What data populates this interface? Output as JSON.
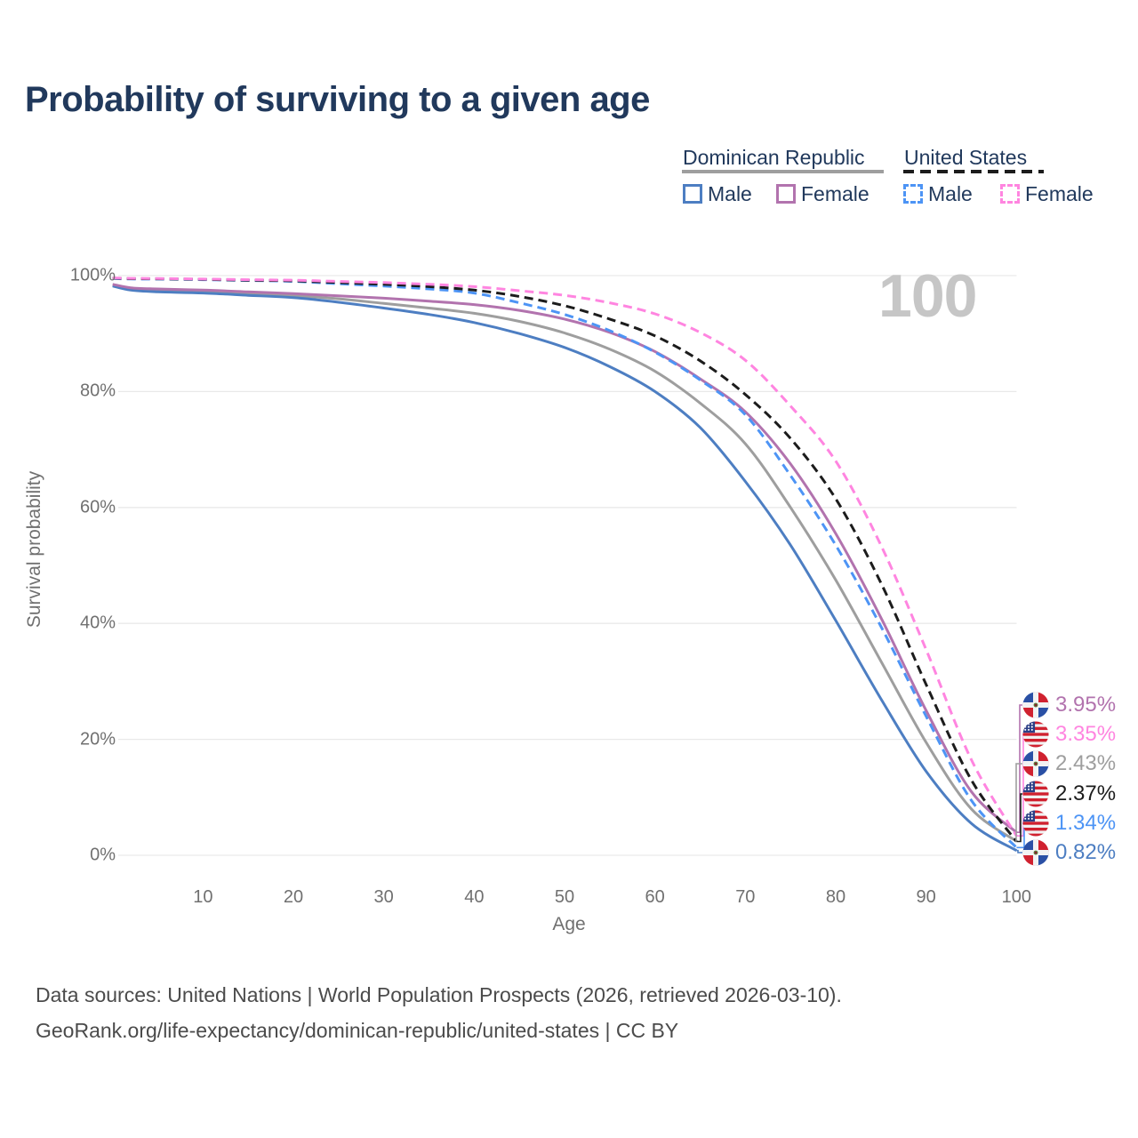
{
  "title": "Probability of surviving to a given age",
  "watermark_age": "100",
  "legend": {
    "groups": [
      {
        "name": "Dominican Republic",
        "line_style": "solid",
        "header_line_color": "#9e9e9e",
        "items": [
          {
            "label": "Male",
            "color": "#4d7ec2"
          },
          {
            "label": "Female",
            "color": "#b273ae"
          }
        ]
      },
      {
        "name": "United States",
        "line_style": "dashed",
        "header_line_color": "#1c1c1c",
        "items": [
          {
            "label": "Male",
            "color": "#4d94f5"
          },
          {
            "label": "Female",
            "color": "#ff85e0"
          }
        ]
      }
    ]
  },
  "chart_data": {
    "type": "line",
    "title": "Probability of surviving to a given age",
    "xlabel": "Age",
    "ylabel": "Survival probability",
    "xlim": [
      0,
      100
    ],
    "ylim": [
      0,
      100
    ],
    "grid": "horizontal",
    "x_ticks": [
      10,
      20,
      30,
      40,
      50,
      60,
      70,
      80,
      90,
      100
    ],
    "y_ticks": [
      {
        "value": 0,
        "label": "0%"
      },
      {
        "value": 20,
        "label": "20%"
      },
      {
        "value": 40,
        "label": "40%"
      },
      {
        "value": 60,
        "label": "60%"
      },
      {
        "value": 80,
        "label": "80%"
      },
      {
        "value": 100,
        "label": "100%"
      }
    ],
    "x": [
      0,
      2,
      5,
      10,
      15,
      20,
      25,
      30,
      35,
      40,
      45,
      50,
      55,
      60,
      65,
      70,
      75,
      80,
      85,
      90,
      95,
      100
    ],
    "series": [
      {
        "name": "Dominican Republic Total",
        "color": "#9e9e9e",
        "dashed": false,
        "flag": "do",
        "end_label": "2.43%",
        "end_value": 2.43,
        "values": [
          98.35,
          97.7,
          97.45,
          97.25,
          96.9,
          96.55,
          96.0,
          95.2,
          94.4,
          93.5,
          92.1,
          90.1,
          87.3,
          83.5,
          78.0,
          71.0,
          60.0,
          47.5,
          33.5,
          19.5,
          8.0,
          2.43
        ]
      },
      {
        "name": "Dominican Republic Male",
        "color": "#4d7ec2",
        "dashed": false,
        "flag": "do",
        "end_label": "0.82%",
        "end_value": 0.82,
        "values": [
          98.2,
          97.5,
          97.2,
          97.0,
          96.6,
          96.2,
          95.4,
          94.4,
          93.3,
          91.9,
          90.0,
          87.6,
          84.3,
          80.0,
          73.8,
          64.5,
          53.5,
          40.5,
          27.0,
          14.5,
          5.5,
          0.82
        ]
      },
      {
        "name": "Dominican Republic Female",
        "color": "#b273ae",
        "dashed": false,
        "flag": "do",
        "end_label": "3.95%",
        "end_value": 3.95,
        "values": [
          98.5,
          97.9,
          97.7,
          97.5,
          97.2,
          96.9,
          96.5,
          96.1,
          95.6,
          95.0,
          94.0,
          92.5,
          90.2,
          86.9,
          82.2,
          76.5,
          67.5,
          55.5,
          41.0,
          25.0,
          11.0,
          3.95
        ]
      },
      {
        "name": "United States Male",
        "color": "#4d94f5",
        "dashed": true,
        "flag": "us",
        "end_label": "1.34%",
        "end_value": 1.34,
        "values": [
          99.5,
          99.42,
          99.4,
          99.3,
          99.15,
          99.0,
          98.6,
          98.2,
          97.7,
          97.0,
          95.3,
          93.3,
          90.5,
          86.8,
          82.0,
          76.0,
          65.5,
          53.5,
          39.5,
          24.0,
          9.5,
          1.34
        ]
      },
      {
        "name": "United States Total",
        "color": "#1c1c1c",
        "dashed": true,
        "flag": "us",
        "end_label": "2.37%",
        "end_value": 2.37,
        "values": [
          99.55,
          99.47,
          99.45,
          99.35,
          99.2,
          99.1,
          98.8,
          98.5,
          98.1,
          97.5,
          96.4,
          94.8,
          92.5,
          89.6,
          85.3,
          79.5,
          71.9,
          61.5,
          47.0,
          29.5,
          13.0,
          2.37
        ]
      },
      {
        "name": "United States Female",
        "color": "#ff85e0",
        "dashed": true,
        "flag": "us",
        "end_label": "3.35%",
        "end_value": 3.35,
        "values": [
          99.6,
          99.52,
          99.5,
          99.4,
          99.3,
          99.2,
          99.0,
          98.8,
          98.5,
          98.1,
          97.4,
          96.6,
          95.3,
          93.4,
          90.2,
          85.4,
          77.5,
          68.0,
          53.5,
          35.5,
          16.5,
          3.35
        ]
      }
    ],
    "end_label_order": [
      "Dominican Republic Female",
      "United States Female",
      "Dominican Republic Total",
      "United States Total",
      "United States Male",
      "Dominican Republic Male"
    ]
  },
  "footer": {
    "line1": "Data sources: United Nations | World Population Prospects (2026, retrieved 2026-03-10).",
    "line2": "GeoRank.org/life-expectancy/dominican-republic/united-states | CC BY"
  }
}
